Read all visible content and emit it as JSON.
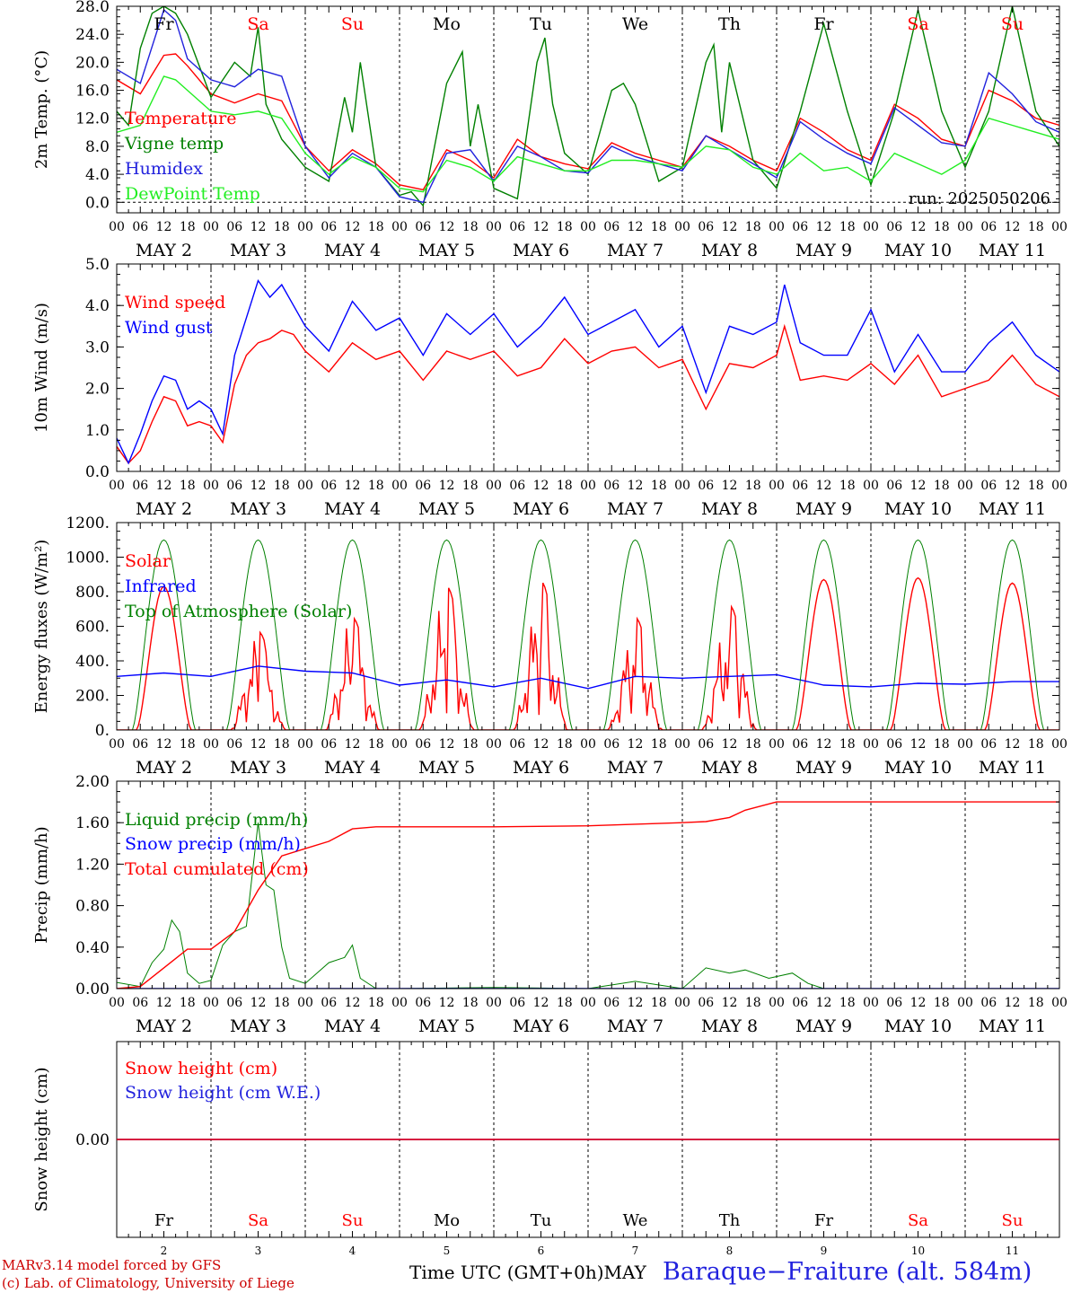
{
  "footer": {
    "credit_line1": "MARv3.14 model forced by GFS",
    "credit_line2": "(c) Lab. of Climatology, University of Liege",
    "x_title": "Time UTC (GMT+0h)",
    "month": "MAY",
    "station": "Baraque−Fraiture (alt. 584m)"
  },
  "colors": {
    "red": "#ff0000",
    "green": "#008000",
    "blue": "#0000ff",
    "light_green": "#22ee22",
    "axis": "#000000",
    "weekend": "#ff0000"
  },
  "chart_data": {
    "type": "line",
    "run_label": "run: 2025050206",
    "days": [
      {
        "date": "MAY  2",
        "weekday": "Fr",
        "weekend": false,
        "day_number": "2"
      },
      {
        "date": "MAY  3",
        "weekday": "Sa",
        "weekend": true,
        "day_number": "3"
      },
      {
        "date": "MAY  4",
        "weekday": "Su",
        "weekend": true,
        "day_number": "4"
      },
      {
        "date": "MAY  5",
        "weekday": "Mo",
        "weekend": false,
        "day_number": "5"
      },
      {
        "date": "MAY  6",
        "weekday": "Tu",
        "weekend": false,
        "day_number": "6"
      },
      {
        "date": "MAY  7",
        "weekday": "We",
        "weekend": false,
        "day_number": "7"
      },
      {
        "date": "MAY  8",
        "weekday": "Th",
        "weekend": false,
        "day_number": "8"
      },
      {
        "date": "MAY  9",
        "weekday": "Fr",
        "weekend": false,
        "day_number": "9"
      },
      {
        "date": "MAY 10",
        "weekday": "Sa",
        "weekend": true,
        "day_number": "10"
      },
      {
        "date": "MAY 11",
        "weekday": "Su",
        "weekend": true,
        "day_number": "11"
      }
    ],
    "hour_ticks": [
      "00",
      "06",
      "12",
      "18"
    ],
    "last_tick": "00",
    "panels": [
      {
        "id": "temperature",
        "ylabel": "2m Temp. (°C)",
        "ylim": [
          -1.5,
          28
        ],
        "ticks": [
          "0.0",
          "4.0",
          "8.0",
          "12.0",
          "16.0",
          "20.0",
          "24.0",
          "28.0"
        ],
        "zero_line": true,
        "series": [
          {
            "name": "Temperature",
            "color": "#ff0000",
            "x": [
              0,
              6,
              12,
              15,
              18,
              24,
              30,
              36,
              42,
              48,
              54,
              60,
              66,
              72,
              78,
              84,
              90,
              96,
              102,
              108,
              114,
              120,
              126,
              132,
              138,
              144,
              150,
              156,
              162,
              168,
              174,
              180,
              186,
              192,
              198,
              204,
              210,
              216,
              222,
              228,
              234,
              240
            ],
            "y": [
              17.5,
              15.5,
              21,
              21.2,
              19.5,
              15.5,
              14.2,
              15.5,
              14.5,
              8,
              4.5,
              7.5,
              5.5,
              2.5,
              1.8,
              7.5,
              6,
              3.5,
              9,
              6.5,
              5.5,
              4.8,
              8.5,
              7,
              6,
              5,
              9.5,
              8,
              6,
              4.5,
              12,
              10,
              7.5,
              6,
              14,
              12,
              9,
              8,
              16,
              14.5,
              12,
              11
            ]
          },
          {
            "name": "Vigne temp",
            "color": "#008000",
            "x": [
              0,
              3,
              6,
              9,
              12,
              15,
              18,
              24,
              30,
              34,
              36,
              38,
              42,
              45,
              48,
              54,
              58,
              60,
              62,
              66,
              72,
              75,
              78,
              84,
              88,
              90,
              92,
              96,
              102,
              107,
              109,
              111,
              114,
              120,
              126,
              129,
              132,
              138,
              144,
              150,
              152,
              154,
              156,
              162,
              168,
              174,
              180,
              186,
              192,
              198,
              204,
              210,
              216,
              222,
              228,
              234,
              240
            ],
            "y": [
              13,
              11,
              22,
              27,
              28,
              27,
              24,
              15,
              20,
              18,
              25,
              14,
              9,
              7,
              5,
              3,
              15,
              10,
              20,
              5,
              1,
              1.5,
              -0.5,
              17,
              21.5,
              8,
              14,
              2,
              0.5,
              20,
              23.5,
              14,
              7,
              4,
              16,
              17,
              14,
              3,
              5,
              20,
              22.5,
              10,
              20,
              6,
              2,
              13,
              25.5,
              13,
              2.5,
              13,
              27.5,
              13,
              5,
              13,
              28,
              13,
              8
            ]
          },
          {
            "name": "Humidex",
            "color": "#2222dd",
            "x": [
              0,
              6,
              12,
              15,
              18,
              24,
              30,
              36,
              42,
              48,
              54,
              60,
              66,
              72,
              78,
              84,
              90,
              96,
              102,
              108,
              114,
              120,
              126,
              132,
              138,
              144,
              150,
              156,
              162,
              168,
              174,
              180,
              186,
              192,
              198,
              204,
              210,
              216,
              222,
              228,
              234,
              240
            ],
            "y": [
              19,
              17,
              27.5,
              26,
              20.5,
              17.5,
              16.5,
              19,
              18,
              8,
              3.5,
              7,
              5,
              0.8,
              0,
              7,
              7.5,
              3,
              8,
              6.5,
              4.5,
              4.2,
              8,
              6.5,
              5.5,
              4.5,
              9.5,
              7.5,
              5.5,
              3.5,
              11.5,
              9,
              7,
              5.5,
              13.5,
              11,
              8.5,
              8,
              18.5,
              15.5,
              11.5,
              10
            ]
          },
          {
            "name": "DewPoint Temp",
            "color": "#22ee22",
            "x": [
              0,
              6,
              12,
              15,
              18,
              24,
              30,
              36,
              42,
              48,
              54,
              60,
              66,
              72,
              78,
              84,
              90,
              96,
              102,
              108,
              114,
              120,
              126,
              132,
              138,
              144,
              150,
              156,
              162,
              168,
              174,
              180,
              186,
              192,
              198,
              204,
              210,
              216,
              222,
              228,
              234,
              240
            ],
            "y": [
              10,
              11,
              18,
              17.5,
              16,
              13,
              12.5,
              13,
              12,
              7,
              4,
              6.5,
              5,
              2,
              1.5,
              6,
              5,
              3,
              6.5,
              5.5,
              4.5,
              4.5,
              6,
              6,
              5.5,
              5,
              8,
              7.5,
              5,
              4,
              7,
              4.5,
              5,
              3,
              7,
              5.5,
              4,
              6,
              12,
              11,
              10,
              9
            ]
          }
        ]
      },
      {
        "id": "wind",
        "ylabel": "10m Wind (m/s)",
        "ylim": [
          0,
          5
        ],
        "ticks": [
          "0.0",
          "1.0",
          "2.0",
          "3.0",
          "4.0",
          "5.0"
        ],
        "series": [
          {
            "name": "Wind speed",
            "color": "#ff0000",
            "x": [
              0,
              3,
              6,
              9,
              12,
              15,
              18,
              21,
              24,
              27,
              30,
              33,
              36,
              39,
              42,
              45,
              48,
              54,
              60,
              66,
              72,
              78,
              84,
              90,
              96,
              102,
              108,
              114,
              120,
              126,
              132,
              138,
              144,
              150,
              156,
              162,
              168,
              170,
              174,
              180,
              186,
              192,
              198,
              204,
              210,
              216,
              222,
              228,
              234,
              240
            ],
            "y": [
              0.6,
              0.2,
              0.5,
              1.2,
              1.8,
              1.7,
              1.1,
              1.2,
              1.1,
              0.7,
              2.1,
              2.8,
              3.1,
              3.2,
              3.4,
              3.3,
              2.9,
              2.4,
              3.1,
              2.7,
              2.9,
              2.2,
              2.9,
              2.7,
              2.9,
              2.3,
              2.5,
              3.2,
              2.6,
              2.9,
              3.0,
              2.5,
              2.7,
              1.5,
              2.6,
              2.5,
              2.8,
              3.5,
              2.2,
              2.3,
              2.2,
              2.6,
              2.1,
              2.8,
              1.8,
              2.0,
              2.2,
              2.8,
              2.1,
              1.8
            ]
          },
          {
            "name": "Wind gust",
            "color": "#0000ff",
            "x": [
              0,
              3,
              6,
              9,
              12,
              15,
              18,
              21,
              24,
              27,
              30,
              33,
              36,
              39,
              42,
              45,
              48,
              54,
              60,
              66,
              72,
              78,
              84,
              90,
              96,
              102,
              108,
              114,
              120,
              126,
              132,
              138,
              144,
              150,
              156,
              162,
              168,
              170,
              174,
              180,
              186,
              192,
              198,
              204,
              210,
              216,
              222,
              228,
              234,
              240
            ],
            "y": [
              0.8,
              0.2,
              0.9,
              1.7,
              2.3,
              2.2,
              1.5,
              1.7,
              1.5,
              0.9,
              2.8,
              3.7,
              4.6,
              4.2,
              4.5,
              4.0,
              3.5,
              2.9,
              4.1,
              3.4,
              3.7,
              2.8,
              3.8,
              3.3,
              3.8,
              3.0,
              3.5,
              4.2,
              3.3,
              3.6,
              3.9,
              3.0,
              3.5,
              1.9,
              3.5,
              3.3,
              3.6,
              4.5,
              3.1,
              2.8,
              2.8,
              3.9,
              2.4,
              3.3,
              2.4,
              2.4,
              3.1,
              3.6,
              2.8,
              2.4
            ]
          }
        ]
      },
      {
        "id": "energy",
        "ylabel": "Energy fluxes (W/m²)",
        "ylim": [
          0,
          1200
        ],
        "ticks": [
          "0.",
          "200.",
          "400.",
          "600.",
          "800.",
          "1000.",
          "1200."
        ],
        "series": [
          {
            "name": "Solar",
            "color": "#ff0000",
            "peaks": [
              830,
              570,
              650,
              830,
              860,
              650,
              720,
              870,
              880,
              850
            ],
            "jagged": [
              false,
              true,
              true,
              true,
              true,
              true,
              true,
              false,
              false,
              false
            ]
          },
          {
            "name": "Infrared",
            "color": "#0000ff",
            "x": [
              0,
              12,
              24,
              36,
              48,
              60,
              72,
              84,
              96,
              108,
              120,
              132,
              144,
              156,
              168,
              180,
              192,
              204,
              216,
              228,
              240
            ],
            "y": [
              310,
              330,
              310,
              370,
              340,
              330,
              260,
              290,
              250,
              300,
              240,
              310,
              300,
              310,
              320,
              260,
              250,
              270,
              265,
              280,
              280
            ]
          },
          {
            "name": "Top of Atmosphere (Solar)",
            "color": "#008000",
            "peak": 1100
          }
        ]
      },
      {
        "id": "precip",
        "ylabel": "Precip (mm/h)",
        "ylim": [
          0,
          2
        ],
        "ticks": [
          "0.00",
          "0.40",
          "0.80",
          "1.20",
          "1.60",
          "2.00"
        ],
        "series": [
          {
            "name": "Liquid precip (mm/h)",
            "color": "#008000",
            "x": [
              0,
              6,
              9,
              12,
              14,
              16,
              18,
              21,
              24,
              27,
              30,
              33,
              36,
              38,
              40,
              42,
              44,
              48,
              54,
              58,
              60,
              62,
              66,
              72,
              96,
              120,
              132,
              144,
              150,
              156,
              160,
              166,
              172,
              176,
              180,
              240
            ],
            "y": [
              0.06,
              0.02,
              0.25,
              0.38,
              0.66,
              0.55,
              0.15,
              0.05,
              0.08,
              0.42,
              0.55,
              0.6,
              1.6,
              1.0,
              0.95,
              0.4,
              0.1,
              0.05,
              0.25,
              0.3,
              0.42,
              0.1,
              0,
              0,
              0.01,
              0,
              0.07,
              0,
              0.2,
              0.15,
              0.18,
              0.1,
              0.15,
              0.05,
              0,
              0
            ]
          },
          {
            "name": "Snow precip (mm/h)",
            "color": "#0000ff",
            "x": [
              0,
              240
            ],
            "y": [
              0,
              0
            ]
          },
          {
            "name": "Total cumulated (cm)",
            "color": "#ff0000",
            "x": [
              0,
              6,
              12,
              18,
              24,
              30,
              36,
              42,
              48,
              54,
              60,
              66,
              72,
              96,
              120,
              144,
              150,
              156,
              160,
              168,
              180,
              192,
              240
            ],
            "y": [
              0,
              0.02,
              0.2,
              0.38,
              0.38,
              0.55,
              0.95,
              1.28,
              1.35,
              1.42,
              1.54,
              1.56,
              1.56,
              1.56,
              1.57,
              1.6,
              1.61,
              1.65,
              1.72,
              1.8,
              1.8,
              1.8,
              1.8
            ]
          }
        ]
      },
      {
        "id": "snow",
        "ylabel": "Snow height (cm)",
        "ticks": [
          "0.00"
        ],
        "series": [
          {
            "name": "Snow height (cm)",
            "color": "#ff0000",
            "x": [
              0,
              240
            ],
            "y": [
              0,
              0
            ]
          },
          {
            "name": "Snow height (cm W.E.)",
            "color": "#2222dd",
            "x": [
              0,
              240
            ],
            "y": [
              0,
              0
            ]
          }
        ]
      }
    ]
  }
}
